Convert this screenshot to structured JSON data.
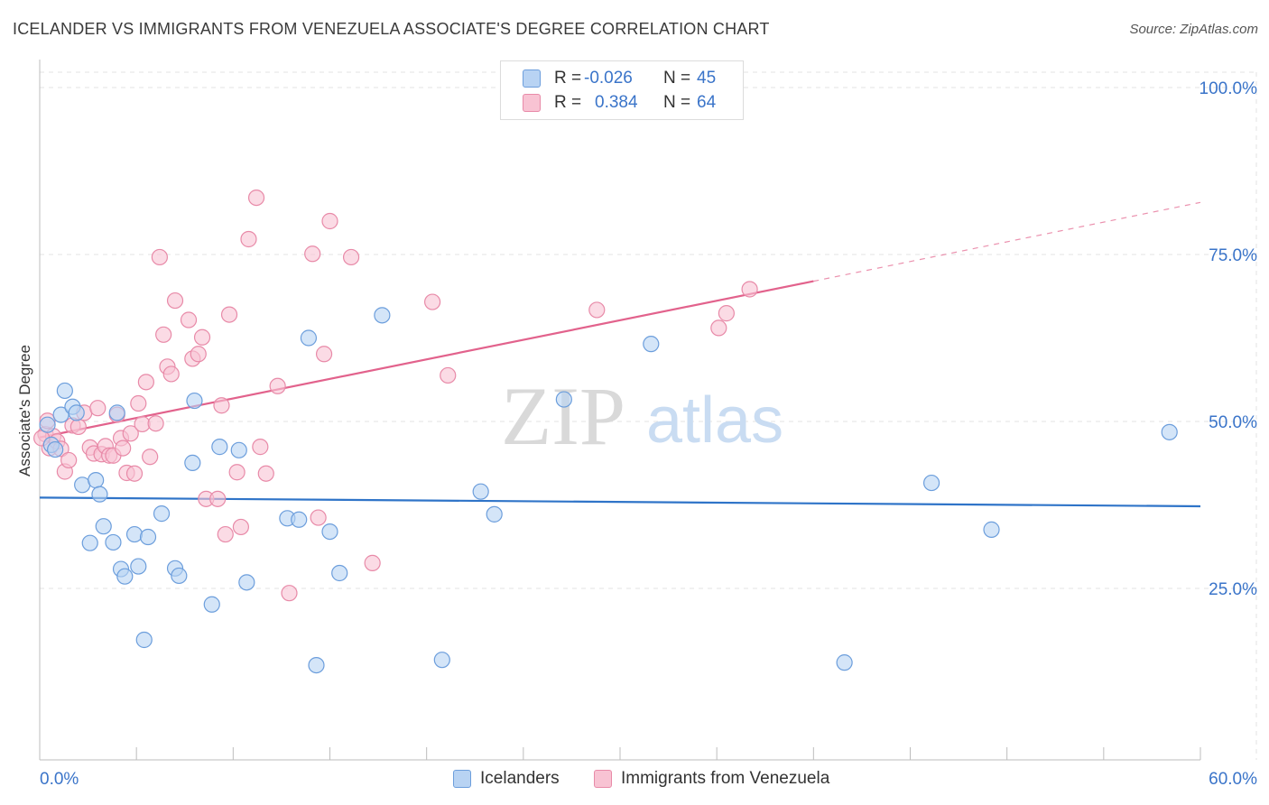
{
  "header": {
    "title": "ICELANDER VS IMMIGRANTS FROM VENEZUELA ASSOCIATE'S DEGREE CORRELATION CHART",
    "source": "Source: ZipAtlas.com"
  },
  "legend": {
    "rows": [
      {
        "r_label": "R =",
        "r_value": "-0.026",
        "n_label": "N =",
        "n_value": "45"
      },
      {
        "r_label": "R =",
        "r_value": "0.384",
        "n_label": "N =",
        "n_value": "64"
      }
    ],
    "series": [
      "Icelanders",
      "Immigrants from Venezuela"
    ]
  },
  "watermark": {
    "zip": "ZIP",
    "atlas": "atlas"
  },
  "colors": {
    "blue_fill": "#b8d3f3",
    "blue_stroke": "#6c9edc",
    "blue_line": "#2f74c8",
    "pink_fill": "#f8c3d3",
    "pink_stroke": "#e88aa8",
    "pink_line": "#e2628c",
    "tick_label": "#3a74c9",
    "grid": "#e3e3e3"
  },
  "chart_data": {
    "type": "scatter",
    "title": "ICELANDER VS IMMIGRANTS FROM VENEZUELA ASSOCIATE'S DEGREE CORRELATION CHART",
    "xlabel": "",
    "ylabel": "Associate's Degree",
    "xlim": [
      0,
      60
    ],
    "ylim": [
      0,
      105
    ],
    "x_tick_labels": [
      "0.0%",
      "60.0%"
    ],
    "y_ticks": [
      25,
      50,
      75,
      100
    ],
    "y_tick_labels": [
      "25.0%",
      "50.0%",
      "75.0%",
      "100.0%"
    ],
    "grid": true,
    "legend_position": "top-center",
    "series": [
      {
        "name": "Icelanders",
        "color": "#6c9edc",
        "points": [
          [
            0.4,
            49.5
          ],
          [
            0.6,
            46.5
          ],
          [
            0.8,
            45.8
          ],
          [
            1.1,
            51.0
          ],
          [
            1.3,
            54.6
          ],
          [
            1.7,
            52.2
          ],
          [
            1.9,
            51.3
          ],
          [
            2.2,
            40.5
          ],
          [
            2.6,
            31.8
          ],
          [
            2.9,
            41.2
          ],
          [
            3.1,
            39.1
          ],
          [
            3.3,
            34.3
          ],
          [
            3.8,
            31.9
          ],
          [
            4.0,
            51.3
          ],
          [
            4.2,
            27.9
          ],
          [
            4.4,
            26.8
          ],
          [
            4.9,
            33.1
          ],
          [
            5.1,
            28.3
          ],
          [
            5.4,
            17.3
          ],
          [
            5.6,
            32.7
          ],
          [
            6.3,
            36.2
          ],
          [
            7.0,
            28.0
          ],
          [
            7.2,
            26.9
          ],
          [
            7.9,
            43.8
          ],
          [
            8.0,
            53.1
          ],
          [
            8.9,
            22.6
          ],
          [
            9.3,
            46.2
          ],
          [
            10.3,
            45.7
          ],
          [
            10.7,
            25.9
          ],
          [
            12.8,
            35.5
          ],
          [
            13.4,
            35.3
          ],
          [
            13.9,
            62.5
          ],
          [
            14.3,
            13.5
          ],
          [
            15.0,
            33.5
          ],
          [
            15.5,
            27.3
          ],
          [
            17.7,
            65.9
          ],
          [
            20.8,
            14.3
          ],
          [
            22.8,
            39.5
          ],
          [
            23.5,
            36.1
          ],
          [
            27.1,
            53.3
          ],
          [
            31.6,
            61.6
          ],
          [
            41.6,
            13.9
          ],
          [
            46.1,
            40.8
          ],
          [
            49.2,
            33.8
          ],
          [
            58.4,
            48.4
          ]
        ],
        "trend": {
          "x": [
            0,
            60
          ],
          "y": [
            38.6,
            37.3
          ]
        }
      },
      {
        "name": "Immigrants from Venezuela",
        "color": "#e88aa8",
        "points": [
          [
            0.3,
            48.1
          ],
          [
            0.4,
            50.1
          ],
          [
            0.5,
            46.0
          ],
          [
            0.7,
            47.8
          ],
          [
            0.9,
            47.0
          ],
          [
            1.1,
            45.9
          ],
          [
            1.3,
            42.5
          ],
          [
            1.5,
            44.2
          ],
          [
            1.7,
            49.4
          ],
          [
            2.0,
            49.2
          ],
          [
            2.3,
            51.3
          ],
          [
            2.6,
            46.1
          ],
          [
            2.8,
            45.2
          ],
          [
            3.0,
            52.0
          ],
          [
            3.2,
            45.1
          ],
          [
            3.4,
            46.3
          ],
          [
            3.6,
            44.9
          ],
          [
            3.8,
            44.9
          ],
          [
            4.0,
            51.0
          ],
          [
            4.2,
            47.5
          ],
          [
            4.3,
            46.0
          ],
          [
            4.5,
            42.3
          ],
          [
            4.7,
            48.2
          ],
          [
            4.9,
            42.2
          ],
          [
            5.1,
            52.7
          ],
          [
            5.3,
            49.6
          ],
          [
            5.5,
            55.9
          ],
          [
            5.7,
            44.7
          ],
          [
            6.0,
            49.7
          ],
          [
            6.2,
            74.6
          ],
          [
            6.4,
            63.0
          ],
          [
            6.6,
            58.2
          ],
          [
            6.8,
            57.1
          ],
          [
            7.0,
            68.1
          ],
          [
            7.7,
            65.2
          ],
          [
            7.9,
            59.4
          ],
          [
            8.2,
            60.1
          ],
          [
            8.4,
            62.6
          ],
          [
            8.6,
            38.4
          ],
          [
            9.2,
            38.4
          ],
          [
            9.4,
            52.4
          ],
          [
            9.6,
            33.1
          ],
          [
            9.8,
            66.0
          ],
          [
            10.2,
            42.4
          ],
          [
            10.4,
            34.2
          ],
          [
            10.8,
            77.3
          ],
          [
            11.2,
            83.5
          ],
          [
            11.4,
            46.2
          ],
          [
            11.7,
            42.2
          ],
          [
            12.3,
            55.3
          ],
          [
            12.9,
            24.3
          ],
          [
            14.1,
            75.1
          ],
          [
            14.4,
            35.6
          ],
          [
            14.7,
            60.1
          ],
          [
            15.0,
            80.0
          ],
          [
            16.1,
            74.6
          ],
          [
            17.2,
            28.8
          ],
          [
            20.3,
            67.9
          ],
          [
            21.1,
            56.9
          ],
          [
            28.8,
            66.7
          ],
          [
            35.1,
            64.0
          ],
          [
            35.5,
            66.2
          ],
          [
            36.7,
            69.8
          ],
          [
            0.1,
            47.5
          ]
        ],
        "trend": {
          "x": [
            0,
            40
          ],
          "y": [
            47.6,
            71.0
          ]
        },
        "trend_extension": {
          "x": [
            40,
            60
          ],
          "y": [
            71.0,
            82.8
          ]
        }
      }
    ]
  }
}
